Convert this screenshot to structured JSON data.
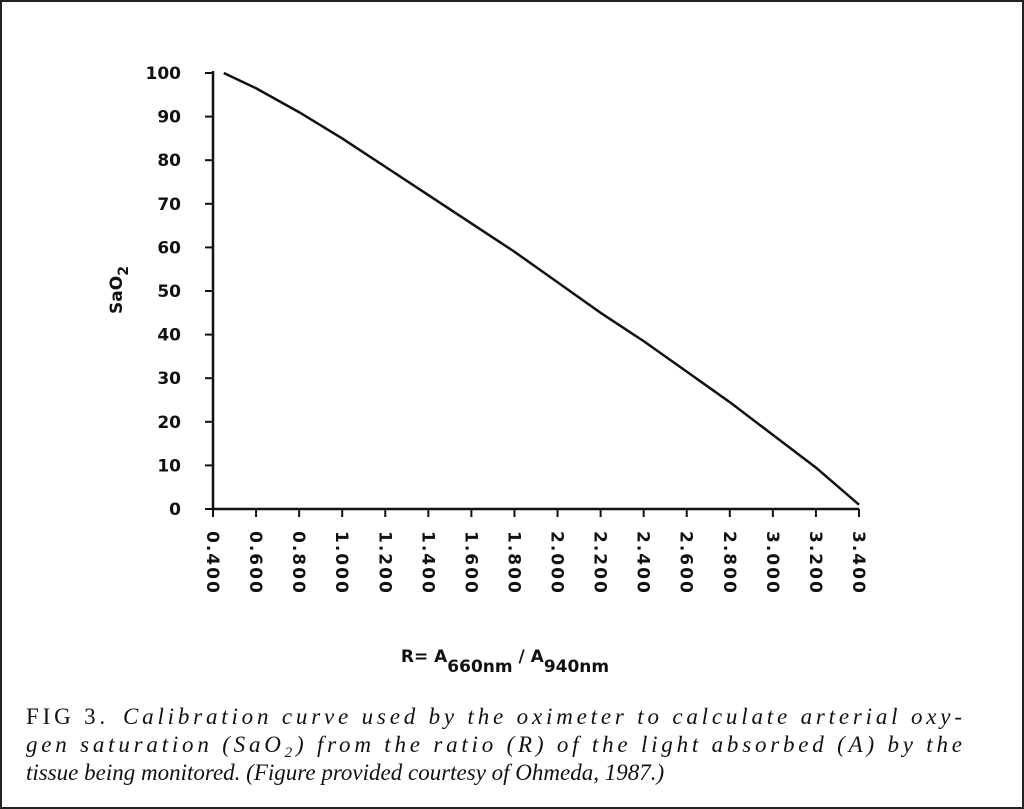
{
  "chart_data": {
    "type": "line",
    "y_label": {
      "text": "SaO",
      "sub": "2"
    },
    "x_label": [
      {
        "text": "R= A",
        "sub": "660nm"
      },
      {
        "text": " / A",
        "sub": "940nm"
      }
    ],
    "x": [
      0.45,
      0.6,
      0.8,
      1.0,
      1.2,
      1.4,
      1.6,
      1.8,
      2.0,
      2.2,
      2.4,
      2.6,
      2.8,
      3.0,
      3.2,
      3.4
    ],
    "values": [
      100,
      96.5,
      91,
      85,
      78.5,
      72,
      65.5,
      59,
      52,
      45,
      38.5,
      31.5,
      24.5,
      17,
      9.5,
      1
    ],
    "color": "#111111",
    "xlim": [
      0.4,
      3.4
    ],
    "ylim": [
      0,
      100
    ],
    "xticks": [
      {
        "value": 0.4,
        "label": "0.400"
      },
      {
        "value": 0.6,
        "label": "0.600"
      },
      {
        "value": 0.8,
        "label": "0.800"
      },
      {
        "value": 1.0,
        "label": "1.000"
      },
      {
        "value": 1.2,
        "label": "1.200"
      },
      {
        "value": 1.4,
        "label": "1.400"
      },
      {
        "value": 1.6,
        "label": "1.600"
      },
      {
        "value": 1.8,
        "label": "1.800"
      },
      {
        "value": 2.0,
        "label": "2.000"
      },
      {
        "value": 2.2,
        "label": "2.200"
      },
      {
        "value": 2.4,
        "label": "2.400"
      },
      {
        "value": 2.6,
        "label": "2.600"
      },
      {
        "value": 2.8,
        "label": "2.800"
      },
      {
        "value": 3.0,
        "label": "3.000"
      },
      {
        "value": 3.2,
        "label": "3.200"
      },
      {
        "value": 3.4,
        "label": "3.400"
      }
    ],
    "yticks": [
      0,
      10,
      20,
      30,
      40,
      50,
      60,
      70,
      80,
      90,
      100
    ],
    "grid": false,
    "caption": {
      "label": "FIG 3.",
      "line_1": "Calibration curve used by the oximeter to calculate arterial oxy-",
      "line_2a": "gen saturation (SaO",
      "line_2sub": "2",
      "line_2b": ") from the ratio (R) of the light absorbed (A) by the",
      "line_3": "tissue being monitored. (Figure provided courtesy of Ohmeda, 1987.)"
    }
  }
}
